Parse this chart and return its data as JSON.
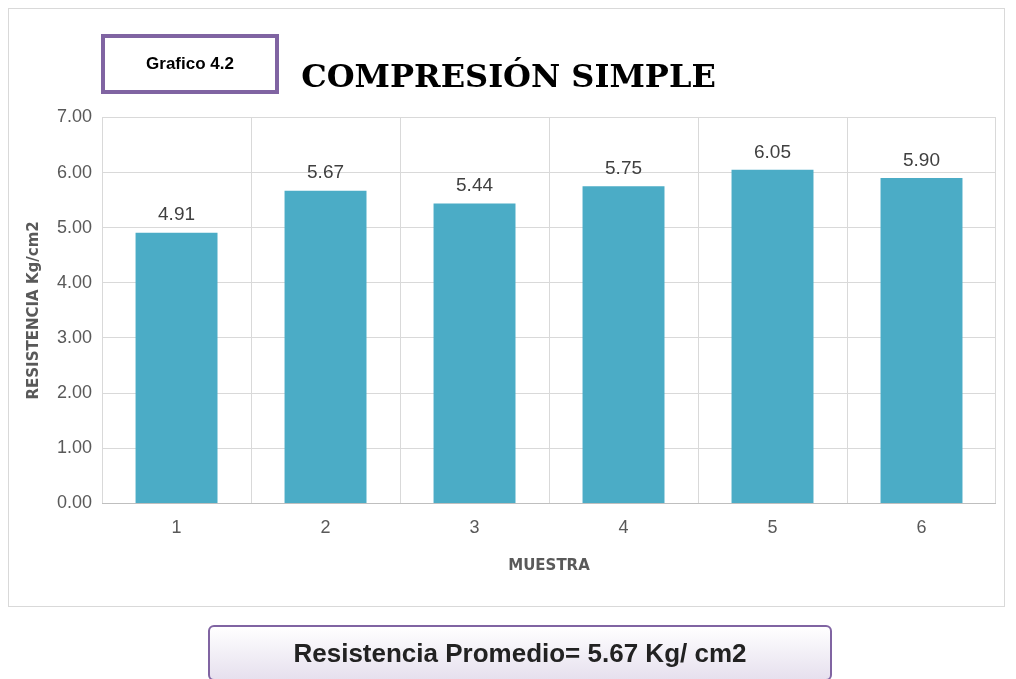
{
  "chart_data": {
    "type": "bar",
    "title": "COMPRESIÓN SIMPLE",
    "xlabel": "MUESTRA",
    "ylabel": "RESISTENCIA Kg/cm2",
    "categories": [
      "1",
      "2",
      "3",
      "4",
      "5",
      "6"
    ],
    "values": [
      4.91,
      5.67,
      5.44,
      5.75,
      6.05,
      5.9
    ],
    "value_labels": [
      "4.91",
      "5.67",
      "5.44",
      "5.75",
      "6.05",
      "5.90"
    ],
    "color": "#4bacc6",
    "ylim": [
      0,
      7
    ],
    "yticks": [
      {
        "value": 0,
        "label": "0.00"
      },
      {
        "value": 1,
        "label": "1.00"
      },
      {
        "value": 2,
        "label": "2.00"
      },
      {
        "value": 3,
        "label": "3.00"
      },
      {
        "value": 4,
        "label": "4.00"
      },
      {
        "value": 5,
        "label": "5.00"
      },
      {
        "value": 6,
        "label": "6.00"
      },
      {
        "value": 7,
        "label": "7.00"
      }
    ],
    "grid": true,
    "legend": false,
    "annotations": [
      "Grafico 4.2",
      "Resistencia Promedio= 5.67 Kg/ cm2"
    ]
  }
}
